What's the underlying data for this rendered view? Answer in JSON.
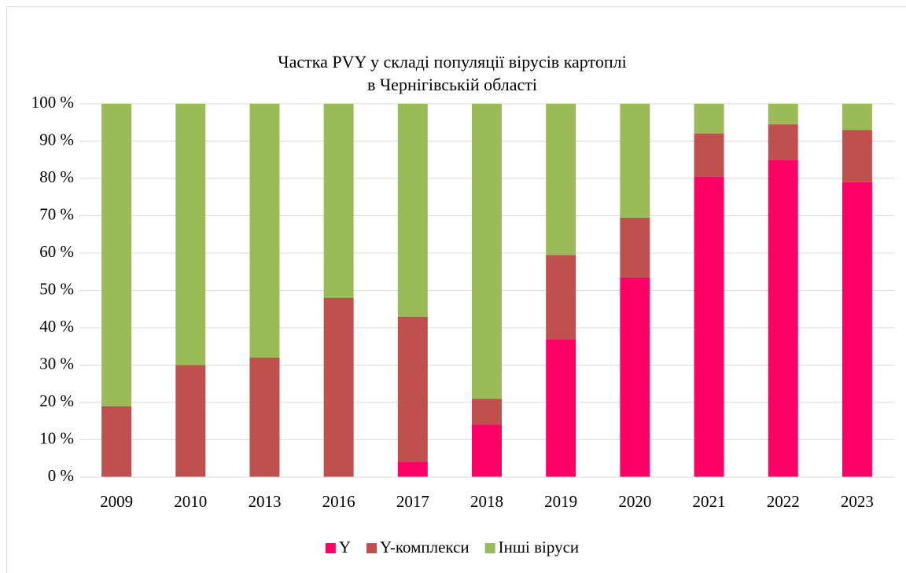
{
  "chart_data": {
    "type": "stacked_bar",
    "title": [
      "Частка PVY у складі популяції вірусів картоплі",
      "в Чернігівській області"
    ],
    "categories": [
      "2009",
      "2010",
      "2013",
      "2016",
      "2017",
      "2018",
      "2019",
      "2020",
      "2021",
      "2022",
      "2023"
    ],
    "series": [
      {
        "name": "Y",
        "color": "#ff0066",
        "values": [
          0,
          0,
          0,
          0,
          4,
          14,
          37,
          53.5,
          80.5,
          85,
          79
        ]
      },
      {
        "name": "Y-комплекси",
        "color": "#c0504d",
        "values": [
          19,
          30,
          32,
          48,
          39,
          7,
          22.5,
          16,
          11.5,
          9.5,
          14
        ]
      },
      {
        "name": "Інші віруси",
        "color": "#9bbb59",
        "values": [
          81,
          70,
          68,
          52,
          57,
          79,
          40.5,
          30.5,
          8,
          5.5,
          7
        ]
      }
    ],
    "ylim": [
      0,
      100
    ],
    "yticks": [
      {
        "value": 0,
        "label": "0 %"
      },
      {
        "value": 10,
        "label": "10 %"
      },
      {
        "value": 20,
        "label": "20 %"
      },
      {
        "value": 30,
        "label": "30 %"
      },
      {
        "value": 40,
        "label": "40 %"
      },
      {
        "value": 50,
        "label": "50 %"
      },
      {
        "value": 60,
        "label": "60 %"
      },
      {
        "value": 70,
        "label": "70 %"
      },
      {
        "value": 80,
        "label": "80 %"
      },
      {
        "value": 90,
        "label": "90 %"
      },
      {
        "value": 100,
        "label": "100 %"
      }
    ],
    "grid": true,
    "legend": "bottom"
  }
}
